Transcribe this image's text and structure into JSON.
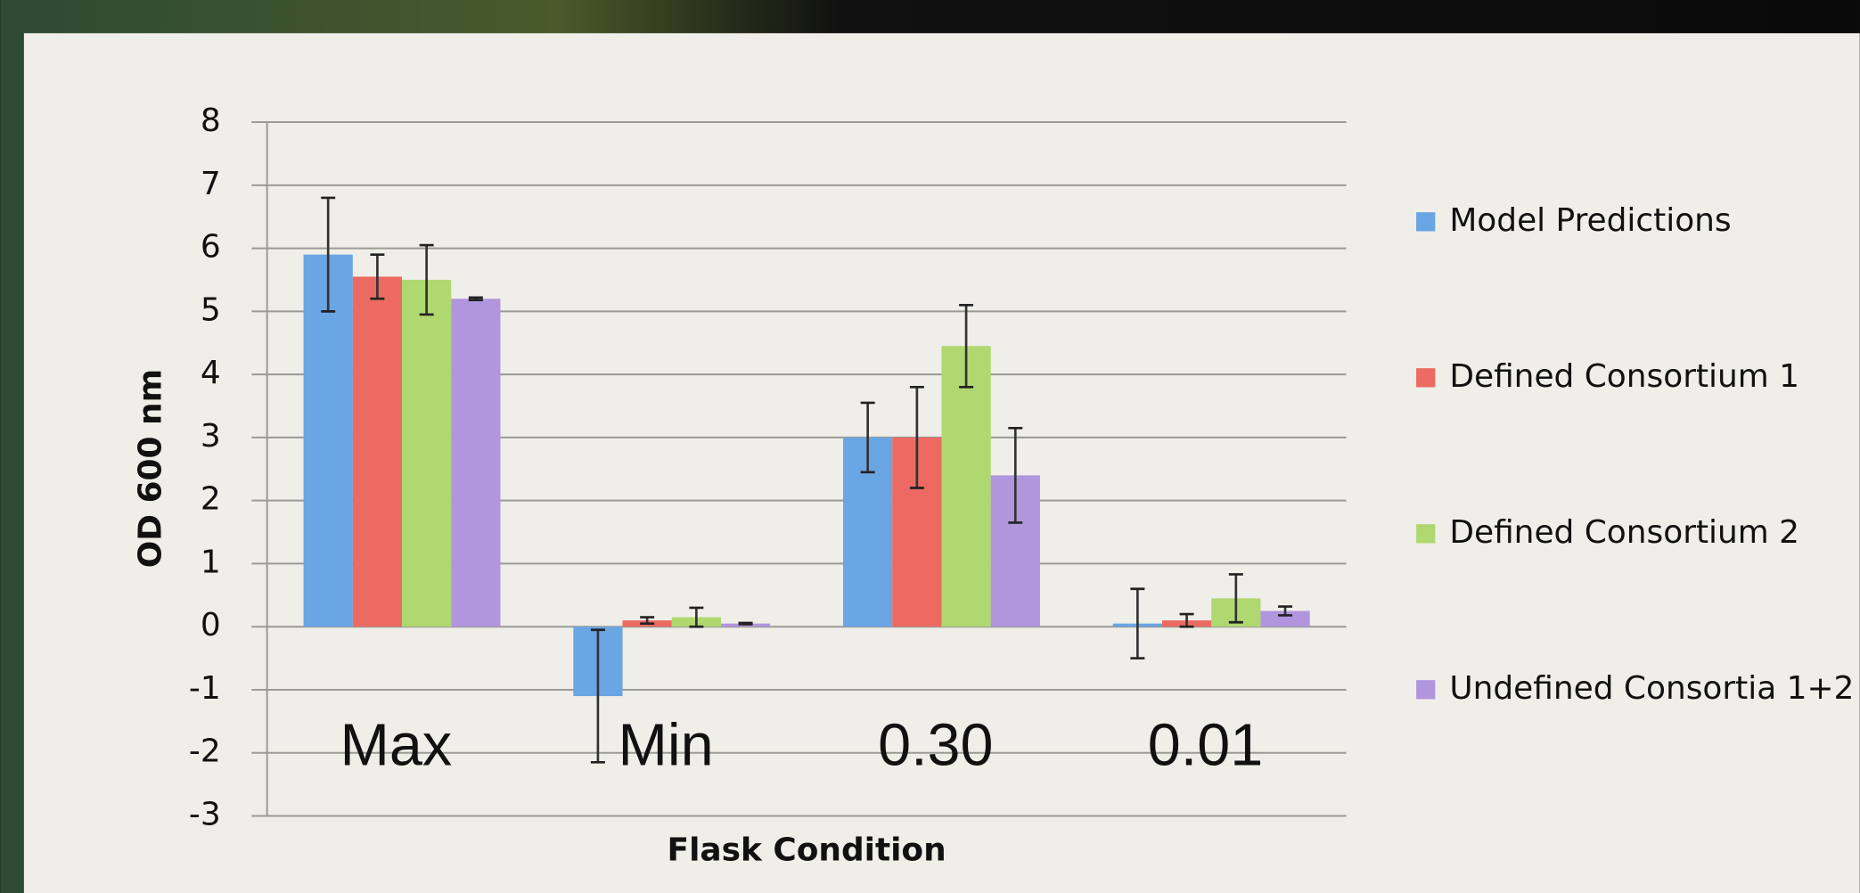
{
  "chart_data": {
    "type": "bar",
    "x_label": "Flask Condition",
    "y_label": "OD 600 nm",
    "categories": [
      "Max",
      "Min",
      "0.30",
      "0.01"
    ],
    "series": [
      {
        "name": "Model Predictions",
        "color": "#6aa5e4",
        "values": [
          5.9,
          -1.1,
          3.0,
          0.05
        ],
        "errors": [
          0.9,
          1.05,
          0.55,
          0.55
        ]
      },
      {
        "name": "Defined Consortium 1",
        "color": "#ec6a62",
        "values": [
          5.55,
          0.1,
          3.0,
          0.1
        ],
        "errors": [
          0.35,
          0.05,
          0.8,
          0.1
        ]
      },
      {
        "name": "Defined Consortium 2",
        "color": "#afd870",
        "values": [
          5.5,
          0.15,
          4.45,
          0.45
        ],
        "errors": [
          0.55,
          0.15,
          0.65,
          0.38
        ]
      },
      {
        "name": "Undefined Consortia 1+2",
        "color": "#b196de",
        "values": [
          5.2,
          0.05,
          2.4,
          0.25
        ],
        "errors": [
          0.02,
          0.01,
          0.75,
          0.07
        ]
      }
    ],
    "ylim": [
      -3,
      8
    ],
    "yticks": [
      -3,
      -2,
      -1,
      0,
      1,
      2,
      3,
      4,
      5,
      6,
      7,
      8
    ],
    "grid": true,
    "legend": "right"
  }
}
